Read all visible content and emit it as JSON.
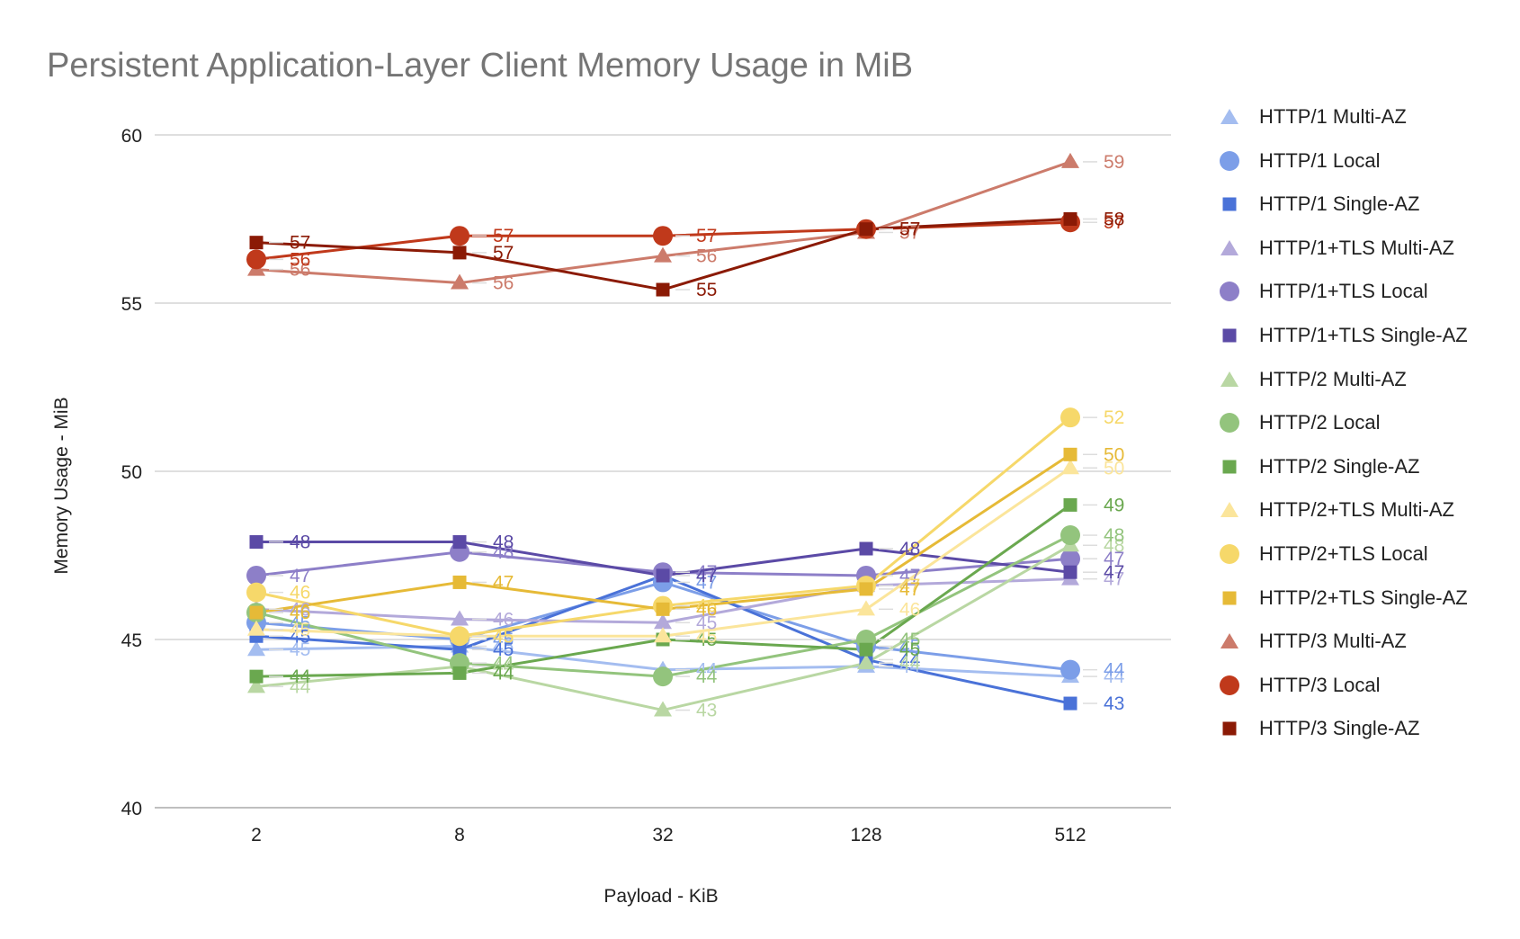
{
  "chart_data": {
    "type": "line",
    "title": "Persistent Application-Layer Client Memory Usage in MiB",
    "xlabel": "Payload - KiB",
    "ylabel": "Memory Usage - MiB",
    "categories": [
      "2",
      "8",
      "32",
      "128",
      "512"
    ],
    "ylim": [
      40,
      60
    ],
    "yticks": [
      "40",
      "45",
      "50",
      "55",
      "60"
    ],
    "grid": true,
    "legend_position": "right",
    "series": [
      {
        "name": "HTTP/1 Multi-AZ",
        "color": "#a4bdf0",
        "marker": "triangle",
        "values": [
          44.7,
          44.8,
          44.1,
          44.2,
          43.9
        ],
        "labels": [
          "45",
          "45",
          "44",
          "44",
          "44"
        ]
      },
      {
        "name": "HTTP/1 Local",
        "color": "#7c9ee8",
        "marker": "circle",
        "values": [
          45.5,
          45.0,
          46.7,
          44.8,
          44.1
        ],
        "labels": [
          "45",
          "45",
          "47",
          "45",
          "44"
        ]
      },
      {
        "name": "HTTP/1 Single-AZ",
        "color": "#4a72d8",
        "marker": "square",
        "values": [
          45.1,
          44.7,
          46.9,
          44.4,
          43.1
        ],
        "labels": [
          "45",
          "45",
          "47",
          "44",
          "43"
        ]
      },
      {
        "name": "HTTP/1+TLS Multi-AZ",
        "color": "#b3a9da",
        "marker": "triangle",
        "values": [
          45.9,
          45.6,
          45.5,
          46.6,
          46.8
        ],
        "labels": [
          "46",
          "46",
          "45",
          "47",
          "47"
        ]
      },
      {
        "name": "HTTP/1+TLS Local",
        "color": "#8d7fc8",
        "marker": "circle",
        "values": [
          46.9,
          47.6,
          47.0,
          46.9,
          47.4
        ],
        "labels": [
          "47",
          "48",
          "47",
          "47",
          "47"
        ]
      },
      {
        "name": "HTTP/1+TLS Single-AZ",
        "color": "#5b4aa6",
        "marker": "square",
        "values": [
          47.9,
          47.9,
          46.9,
          47.7,
          47.0
        ],
        "labels": [
          "48",
          "48",
          "47",
          "48",
          "47"
        ]
      },
      {
        "name": "HTTP/2 Multi-AZ",
        "color": "#b9d7a3",
        "marker": "triangle",
        "values": [
          43.6,
          44.2,
          42.9,
          44.3,
          47.8
        ],
        "labels": [
          "44",
          "44",
          "43",
          "44",
          "48"
        ]
      },
      {
        "name": "HTTP/2 Local",
        "color": "#93c47d",
        "marker": "circle",
        "values": [
          45.8,
          44.3,
          43.9,
          45.0,
          48.1
        ],
        "labels": [
          "46",
          "44",
          "44",
          "45",
          "48"
        ]
      },
      {
        "name": "HTTP/2 Single-AZ",
        "color": "#6aa84f",
        "marker": "square",
        "values": [
          43.9,
          44.0,
          45.0,
          44.7,
          49.0
        ],
        "labels": [
          "44",
          "44",
          "45",
          "45",
          "49"
        ]
      },
      {
        "name": "HTTP/2+TLS Multi-AZ",
        "color": "#fbe59b",
        "marker": "triangle",
        "values": [
          45.3,
          45.1,
          45.1,
          45.9,
          50.1
        ],
        "labels": [
          "45",
          "45",
          "45",
          "46",
          "50"
        ]
      },
      {
        "name": "HTTP/2+TLS Local",
        "color": "#f6d86a",
        "marker": "circle",
        "values": [
          46.4,
          45.1,
          46.0,
          46.6,
          51.6
        ],
        "labels": [
          "46",
          "45",
          "46",
          "47",
          "52"
        ]
      },
      {
        "name": "HTTP/2+TLS Single-AZ",
        "color": "#e6ba37",
        "marker": "square",
        "values": [
          45.8,
          46.7,
          45.9,
          46.5,
          50.5
        ],
        "labels": [
          "46",
          "47",
          "46",
          "47",
          "50"
        ]
      },
      {
        "name": "HTTP/3 Multi-AZ",
        "color": "#cc7b6b",
        "marker": "triangle",
        "values": [
          56.0,
          55.6,
          56.4,
          57.1,
          59.2
        ],
        "labels": [
          "56",
          "56",
          "56",
          "57",
          "59"
        ]
      },
      {
        "name": "HTTP/3 Local",
        "color": "#c0391b",
        "marker": "circle",
        "values": [
          56.3,
          57.0,
          57.0,
          57.2,
          57.4
        ],
        "labels": [
          "56",
          "57",
          "57",
          "57",
          "57"
        ]
      },
      {
        "name": "HTTP/3 Single-AZ",
        "color": "#8b1a05",
        "marker": "square",
        "values": [
          56.8,
          56.5,
          55.4,
          57.2,
          57.5
        ],
        "labels": [
          "57",
          "57",
          "55",
          "57",
          "58"
        ]
      }
    ]
  }
}
